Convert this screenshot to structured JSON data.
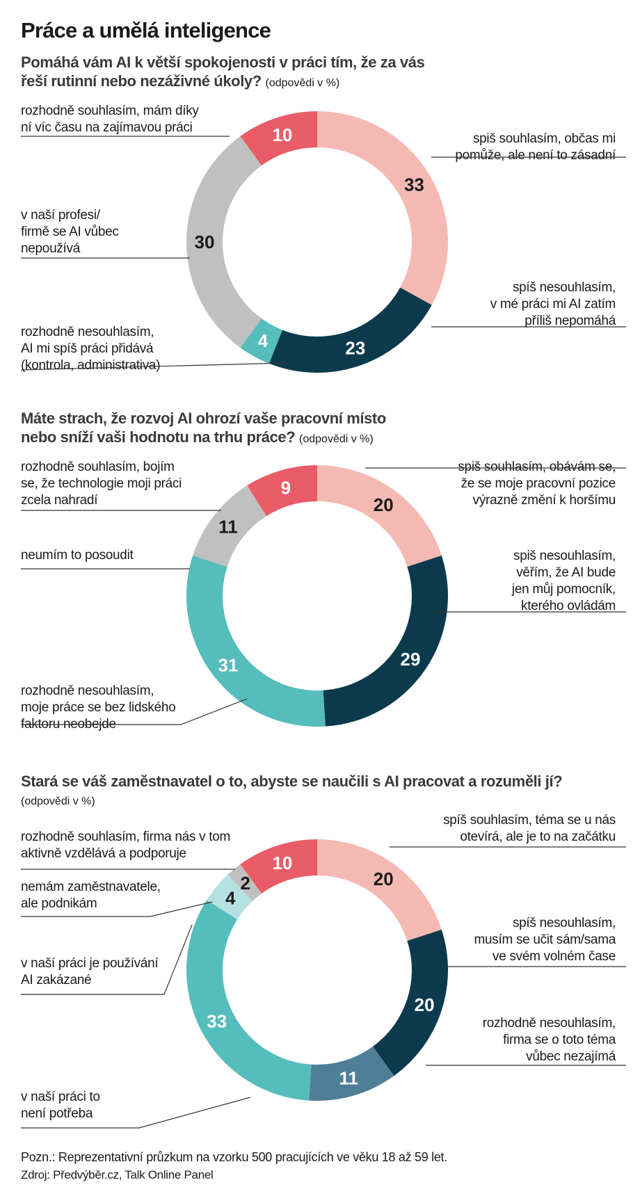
{
  "title": "Práce a umělá inteligence",
  "chart_data": [
    {
      "type": "pie",
      "donut": true,
      "question": "Pomáhá vám AI k větší spokojenosti v práci tím, že za vás řeší rutinní nebo nezáživné úkoly?",
      "unit": "(odpovědi v %)",
      "slices": [
        {
          "value": 33,
          "label": "spiš souhlasím, občas mi pomůže, ale není to zásadní",
          "color": "#f5b9b3",
          "text_color": "#1a1a1a"
        },
        {
          "value": 23,
          "label": "spíš nesouhlasím, v mé práci mi AI zatím příliš nepomáhá",
          "color": "#0c3a4d",
          "text_color": "#ffffff"
        },
        {
          "value": 4,
          "label": "rozhodně nesouhlasím, AI mi spíš práci přidává (kontrola, administrativa)",
          "color": "#55bdbc",
          "text_color": "#ffffff"
        },
        {
          "value": 30,
          "label": "v naší profesi/ firmě se AI vůbec nepoužívá",
          "color": "#c1c0c1",
          "text_color": "#1a1a1a"
        },
        {
          "value": 10,
          "label": "rozhodně souhlasím, mám díky ní víc času na zajímavou práci",
          "color": "#e95c67",
          "text_color": "#ffffff"
        }
      ]
    },
    {
      "type": "pie",
      "donut": true,
      "question": "Máte strach, že rozvoj AI ohrozí vaše pracovní místo nebo sníží vaši hodnotu na trhu práce?",
      "unit": "(odpovědi v %)",
      "slices": [
        {
          "value": 20,
          "label": "spiš souhlasím, obávám se, že se moje pracovní pozice výrazně změní k horšímu",
          "color": "#f5b9b3",
          "text_color": "#1a1a1a"
        },
        {
          "value": 29,
          "label": "spiš nesouhlasím, věřím, že AI bude jen můj pomocník, kterého ovládám",
          "color": "#0c3a4d",
          "text_color": "#ffffff"
        },
        {
          "value": 31,
          "label": "rozhodně nesouhlasím, moje práce se bez lidského faktoru neobejde",
          "color": "#55bdbc",
          "text_color": "#ffffff"
        },
        {
          "value": 11,
          "label": "neumím to posoudit",
          "color": "#c1c0c1",
          "text_color": "#1a1a1a"
        },
        {
          "value": 9,
          "label": "rozhodně souhlasím, bojím se, že technologie moji práci zcela nahradí",
          "color": "#e95c67",
          "text_color": "#ffffff"
        }
      ]
    },
    {
      "type": "pie",
      "donut": true,
      "question": "Stará se váš zaměstnavatel o to, abyste se naučili s AI pracovat a rozuměli jí?",
      "unit": "(odpovědi v %)",
      "slices": [
        {
          "value": 20,
          "label": "spíš souhlasím, téma se u nás otevírá, ale je to na začátku",
          "color": "#f5b9b3",
          "text_color": "#1a1a1a"
        },
        {
          "value": 20,
          "label": "spíš nesouhlasím, musím se učit sám/sama ve svém volném čase",
          "color": "#0c3a4d",
          "text_color": "#ffffff"
        },
        {
          "value": 11,
          "label": "rozhodně nesouhlasím, firma se o toto téma vůbec nezajímá",
          "color": "#4e7f97",
          "text_color": "#ffffff"
        },
        {
          "value": 33,
          "label": "v naší práci to není potřeba",
          "color": "#55bdbc",
          "text_color": "#ffffff"
        },
        {
          "value": 4,
          "label": "v naší práci je používání AI zakázané",
          "color": "#b6e1e2",
          "text_color": "#1a1a1a"
        },
        {
          "value": 2,
          "label": "nemám zaměstnavatele, ale podnikám",
          "color": "#c1c0c1",
          "text_color": "#1a1a1a"
        },
        {
          "value": 10,
          "label": "rozhodně souhlasím, firma nás v tom aktivně vzdělává a podporuje",
          "color": "#e95c67",
          "text_color": "#ffffff"
        }
      ]
    }
  ],
  "labels_text": {
    "c0": [
      "spiš souhlasím, občas mi\npomůže, ale není to zásadní",
      "spíš nesouhlasím,\nv mé práci mi AI zatím\npříliš nepomáhá",
      "rozhodně nesouhlasím,\nAI mi spíš práci přidává\n(kontrola, administrativa)",
      "v naší profesi/\nfirmě se AI vůbec\nnepoužívá",
      "rozhodně souhlasím, mám díky\nní víc času na zajímavou práci"
    ],
    "c1": [
      "spiš souhlasím, obávám se,\nže se moje pracovní pozice\nvýrazně změní k horšímu",
      "spiš nesouhlasím,\nvěřím, že AI bude\njen můj pomocník,\nkterého ovládám",
      "rozhodně nesouhlasím,\nmoje práce se bez lidského\nfaktoru neobejde",
      "neumím to posoudit",
      "rozhodně souhlasím, bojím\nse, že technologie moji práci\nzcela nahradí"
    ],
    "c2": [
      "spíš souhlasím, téma se u nás\notevírá, ale je to na začátku",
      "spíš nesouhlasím,\nmusím se učit sám/sama\nve svém volném čase",
      "rozhodně nesouhlasím,\nfirma se o toto téma\nvůbec nezajímá",
      "v naší práci to\nnení potřeba",
      "v naší práci je používání\nAI zakázané",
      "nemám zaměstnavatele,\nale podnikám",
      "rozhodně souhlasím, firma nás v tom\naktivně vzdělává a podporuje"
    ]
  },
  "questions_display": {
    "q0": "Pomáhá vám AI k větší spokojenosti v práci tím, že za vás\nřeší rutinní nebo nezáživné úkoly?",
    "q1": "Máte strach, že rozvoj AI ohrozí vaše pracovní místo\nnebo sníží vaši hodnotu na trhu práce?",
    "q2": "Stará se váš zaměstnavatel o to, abyste se naučili s AI pracovat a rozuměli jí?"
  },
  "note": "Pozn.: Reprezentativní průzkum na vzorku 500 pracujících ve věku 18 až 59 let.",
  "source": "Zdroj: Předvýběr.cz, Talk Online Panel"
}
